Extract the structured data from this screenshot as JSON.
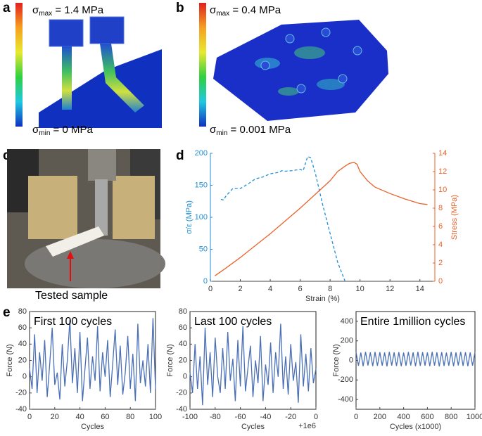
{
  "panel_labels": [
    "a",
    "b",
    "c",
    "d",
    "e"
  ],
  "panel_a": {
    "max_symbol": "σ",
    "max_sub": "max",
    "max_value": " = 1.4 MPa",
    "min_symbol": "σ",
    "min_sub": "min",
    "min_value": " = 0 MPa"
  },
  "panel_b": {
    "max_symbol": "σ",
    "max_sub": "max",
    "max_value": " = 0.4 MPa",
    "min_symbol": "σ",
    "min_sub": "min",
    "min_value": " = 0.001 MPa"
  },
  "panel_c": {
    "annotation": "Tested sample"
  },
  "chart_data": [
    {
      "type": "line",
      "xlabel": "Strain (%)",
      "ylabel": "σ/ε (MPa)",
      "y2label": "Stress (MPa)",
      "xlim": [
        0,
        15
      ],
      "xticks": [
        0,
        2,
        4,
        6,
        8,
        10,
        12,
        14
      ],
      "ylim": [
        0,
        200
      ],
      "yticks": [
        0,
        50,
        100,
        150,
        200
      ],
      "ycolor": "#1f8fd6",
      "y2lim": [
        0,
        14
      ],
      "y2ticks": [
        0,
        2,
        4,
        6,
        8,
        10,
        12,
        14
      ],
      "y2color": "#e8632b",
      "series": [
        {
          "color": "#1f8fd6",
          "linestyle": "dashed",
          "x": [
            0.7,
            0.9,
            1.0,
            1.3,
            1.5,
            2.0,
            2.5,
            3.0,
            3.5,
            4.0,
            4.5,
            4.8,
            5.0,
            5.5,
            6.0,
            6.2,
            6.5,
            6.7,
            7.0,
            7.5,
            8.0,
            8.5,
            9.0
          ],
          "values": [
            128,
            127,
            132,
            140,
            145,
            145,
            152,
            160,
            163,
            168,
            170,
            173,
            172,
            173,
            175,
            173,
            195,
            193,
            170,
            120,
            75,
            30,
            0
          ]
        },
        {
          "color": "#e8632b",
          "linestyle": "solid",
          "axis": "y2",
          "x": [
            0.3,
            1,
            2,
            3,
            4,
            5,
            6,
            7,
            8,
            8.5,
            9,
            9.3,
            9.6,
            9.8,
            10,
            10.5,
            11,
            12,
            13,
            14,
            14.5
          ],
          "values": [
            0.6,
            1.4,
            2.6,
            3.9,
            5.2,
            6.6,
            8.0,
            9.5,
            11,
            12,
            12.6,
            12.9,
            13,
            12.8,
            12,
            11,
            10.3,
            9.6,
            9.0,
            8.5,
            8.4
          ]
        }
      ]
    },
    {
      "type": "line",
      "title": "First 100 cycles",
      "xlabel": "Cycles",
      "ylabel": "Force (N)",
      "box": true,
      "xlim": [
        0,
        100
      ],
      "xticks": [
        0,
        20,
        40,
        60,
        80,
        100
      ],
      "ylim": [
        -40,
        80
      ],
      "yticks": [
        -40,
        -20,
        0,
        20,
        40,
        60,
        80
      ],
      "series": [
        {
          "color": "#4a6fb5",
          "linestyle": "solid",
          "x": [
            0,
            2,
            4,
            6,
            8,
            10,
            12,
            14,
            16,
            18,
            20,
            22,
            24,
            26,
            28,
            30,
            32,
            34,
            36,
            38,
            40,
            42,
            44,
            46,
            48,
            50,
            52,
            54,
            56,
            58,
            60,
            62,
            64,
            66,
            68,
            70,
            72,
            74,
            76,
            78,
            80,
            82,
            84,
            86,
            88,
            90,
            92,
            94,
            96,
            98,
            100
          ],
          "values": [
            10,
            -15,
            52,
            -20,
            30,
            -5,
            45,
            -25,
            15,
            60,
            -10,
            5,
            -28,
            40,
            -12,
            20,
            70,
            -8,
            35,
            -20,
            55,
            -30,
            10,
            48,
            -15,
            25,
            -5,
            62,
            -18,
            30,
            0,
            45,
            -25,
            15,
            58,
            -10,
            38,
            -22,
            5,
            50,
            -15,
            28,
            -30,
            65,
            -8,
            20,
            -12,
            40,
            -20,
            72,
            -15
          ]
        }
      ]
    },
    {
      "type": "line",
      "title": "Last 100 cycles",
      "xlabel": "Cycles",
      "ylabel": "Force (N)",
      "offset_label": "+1e6",
      "box": true,
      "xlim": [
        -100,
        0
      ],
      "xticks": [
        -100,
        -80,
        -60,
        -40,
        -20,
        0
      ],
      "ylim": [
        -40,
        80
      ],
      "yticks": [
        -40,
        -20,
        0,
        20,
        40,
        60,
        80
      ],
      "series": [
        {
          "color": "#4a6fb5",
          "linestyle": "solid",
          "x": [
            -100,
            -98,
            -96,
            -94,
            -92,
            -90,
            -88,
            -86,
            -84,
            -82,
            -80,
            -78,
            -76,
            -74,
            -72,
            -70,
            -68,
            -66,
            -64,
            -62,
            -60,
            -58,
            -56,
            -54,
            -52,
            -50,
            -48,
            -46,
            -44,
            -42,
            -40,
            -38,
            -36,
            -34,
            -32,
            -30,
            -28,
            -26,
            -24,
            -22,
            -20,
            -18,
            -16,
            -14,
            -12,
            -10,
            -8,
            -6,
            -4,
            -2,
            0
          ],
          "values": [
            5,
            -20,
            40,
            -15,
            25,
            -35,
            60,
            -10,
            30,
            -25,
            48,
            0,
            -20,
            35,
            -15,
            55,
            -5,
            22,
            -30,
            45,
            -12,
            62,
            -18,
            10,
            38,
            -25,
            20,
            -8,
            50,
            -30,
            15,
            -10,
            42,
            -20,
            30,
            0,
            65,
            -15,
            25,
            -22,
            40,
            -5,
            18,
            -32,
            52,
            -12,
            28,
            -18,
            35,
            -8,
            10
          ]
        }
      ]
    },
    {
      "type": "line",
      "title": "Entire 1million cycles",
      "xlabel": "Cycles (x1000)",
      "ylabel": "Force (N)",
      "box": true,
      "xlim": [
        0,
        1000
      ],
      "xticks": [
        0,
        200,
        400,
        600,
        800,
        1000
      ],
      "ylim": [
        -500,
        500
      ],
      "yticks": [
        -400,
        -200,
        0,
        200,
        400
      ],
      "series": [
        {
          "color": "#4a6fb5",
          "linestyle": "solid",
          "x": [
            0,
            20,
            40,
            60,
            80,
            100,
            120,
            140,
            160,
            180,
            200,
            220,
            240,
            260,
            280,
            300,
            320,
            340,
            360,
            380,
            400,
            420,
            440,
            460,
            480,
            500,
            520,
            540,
            560,
            580,
            600,
            620,
            640,
            660,
            680,
            700,
            720,
            740,
            760,
            780,
            800,
            820,
            840,
            860,
            880,
            900,
            920,
            940,
            960,
            980,
            1000
          ],
          "values": [
            85,
            -55,
            80,
            -60,
            88,
            -52,
            82,
            -58,
            86,
            -56,
            84,
            -54,
            81,
            -61,
            87,
            -53,
            83,
            -57,
            85,
            -59,
            80,
            -55,
            86,
            -52,
            82,
            -60,
            88,
            -56,
            84,
            -54,
            81,
            -58,
            87,
            -53,
            83,
            -61,
            85,
            -57,
            80,
            -55,
            86,
            -59,
            82,
            -52,
            88,
            -56,
            84,
            -60,
            81,
            -54,
            85
          ]
        }
      ]
    }
  ]
}
